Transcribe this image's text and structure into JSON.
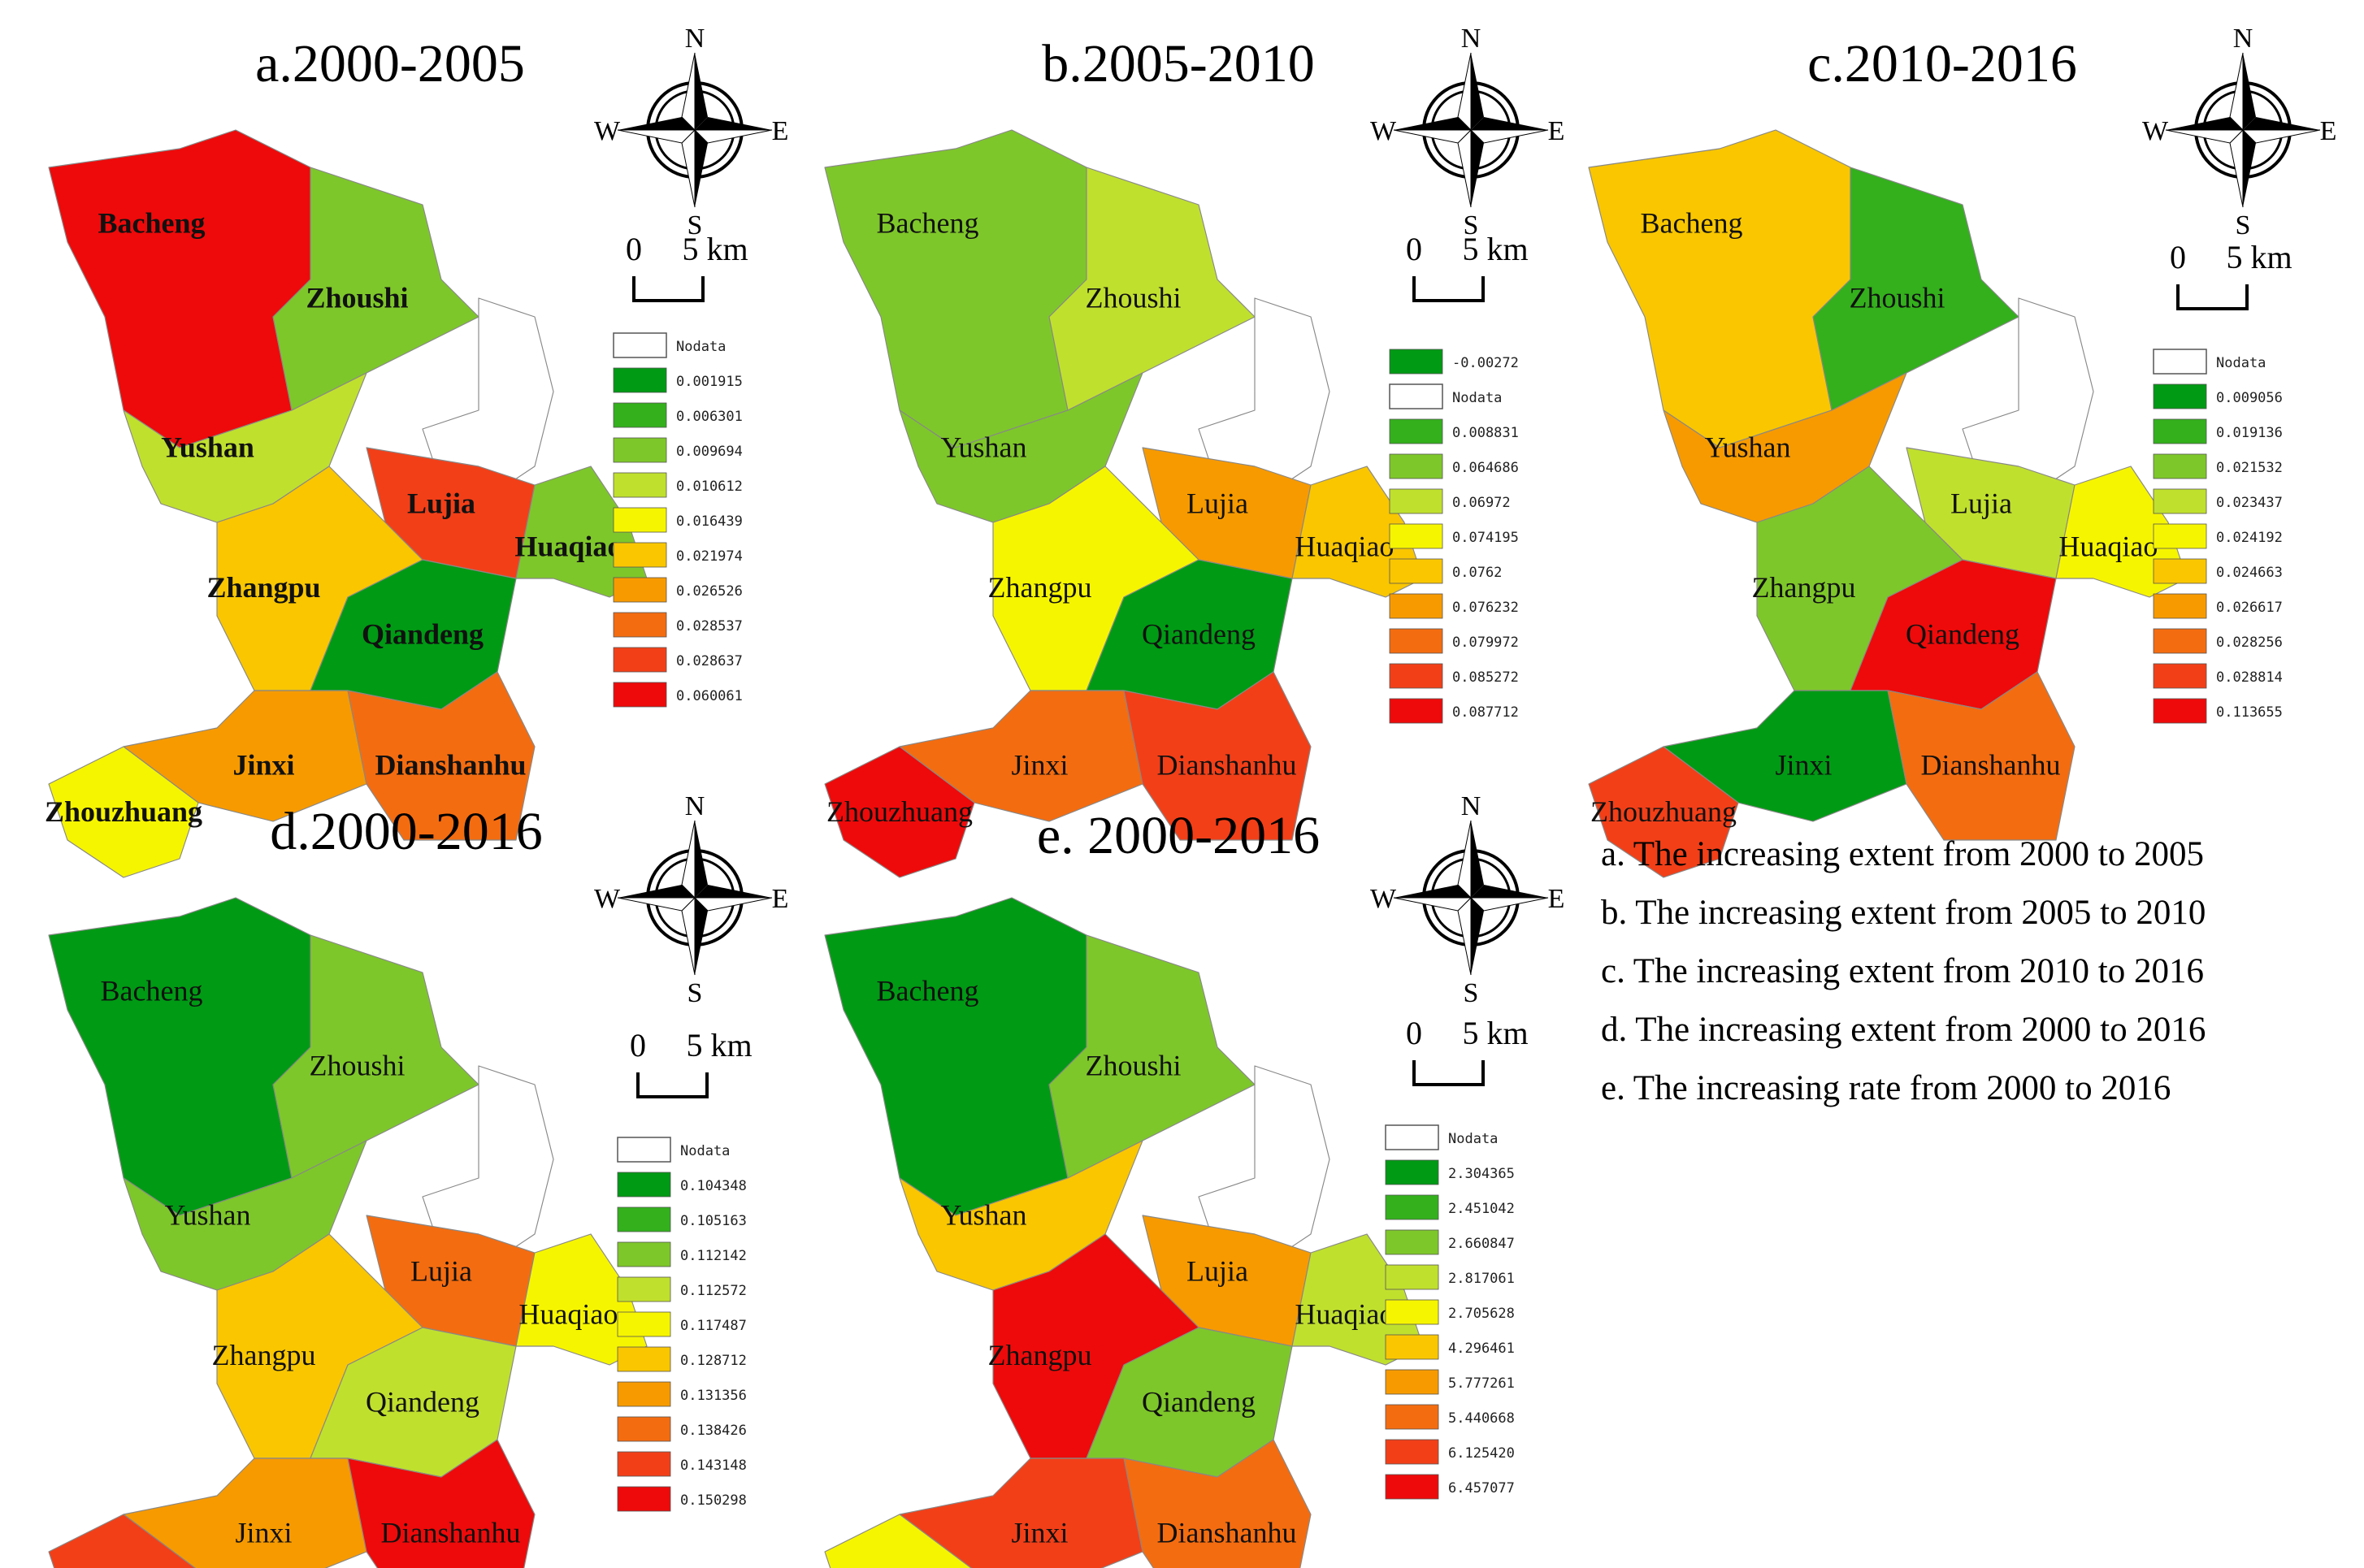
{
  "colors": {
    "c1": "#009a14",
    "c2": "#33b01c",
    "c3": "#7ec72a",
    "c4": "#c0e02e",
    "c5": "#f6f500",
    "c6": "#f9c600",
    "c7": "#f79a00",
    "c8": "#f46c10",
    "c9": "#f23f18",
    "c10": "#ee0a0a",
    "nodata": "#ffffff",
    "outline": "#888888"
  },
  "compass": {
    "n": "N",
    "s": "S",
    "w": "W",
    "e": "E"
  },
  "scale": {
    "zero": "0",
    "distance": "5 km"
  },
  "nodata_label": "Nodata",
  "region_names": {
    "bacheng": "Bacheng",
    "zhoushi": "Zhoushi",
    "yushan": "Yushan",
    "lujia": "Lujia",
    "huaqiao": "Huaqiao",
    "zhangpu": "Zhangpu",
    "qiandeng": "Qiandeng",
    "jinxi": "Jinxi",
    "dianshanhu": "Dianshanhu",
    "zhouzhuang": "Zhouzhuang"
  },
  "panels": [
    {
      "title": "a.2000-2005",
      "bold_labels": true,
      "legend": [
        "0.001915",
        "0.006301",
        "0.009694",
        "0.010612",
        "0.016439",
        "0.021974",
        "0.026526",
        "0.028537",
        "0.028637",
        "0.060061"
      ],
      "fills": {
        "bacheng": 10,
        "zhoushi": 3,
        "yushan": 4,
        "lujia": 9,
        "huaqiao": 3,
        "zhangpu": 6,
        "qiandeng": 1,
        "jinxi": 7,
        "dianshanhu": 8,
        "zhouzhuang": 5
      }
    },
    {
      "title": "b.2005-2010",
      "bold_labels": false,
      "legend_has_negative_class": true,
      "legend": [
        "-0.00272",
        "0.008831",
        "0.064686",
        "0.06972",
        "0.074195",
        "0.0762",
        "0.076232",
        "0.079972",
        "0.085272",
        "0.087712"
      ],
      "fills": {
        "bacheng": 3,
        "zhoushi": 4,
        "yushan": 3,
        "lujia": 7,
        "huaqiao": 6,
        "zhangpu": 5,
        "qiandeng": 1,
        "jinxi": 8,
        "dianshanhu": 9,
        "zhouzhuang": 10
      }
    },
    {
      "title": "c.2010-2016",
      "bold_labels": false,
      "legend": [
        "0.009056",
        "0.019136",
        "0.021532",
        "0.023437",
        "0.024192",
        "0.024663",
        "0.026617",
        "0.028256",
        "0.028814",
        "0.113655"
      ],
      "fills": {
        "bacheng": 6,
        "zhoushi": 2,
        "yushan": 7,
        "lujia": 4,
        "huaqiao": 5,
        "zhangpu": 3,
        "qiandeng": 10,
        "jinxi": 1,
        "dianshanhu": 8,
        "zhouzhuang": 9
      }
    },
    {
      "title": "d.2000-2016",
      "bold_labels": false,
      "legend": [
        "0.104348",
        "0.105163",
        "0.112142",
        "0.112572",
        "0.117487",
        "0.128712",
        "0.131356",
        "0.138426",
        "0.143148",
        "0.150298"
      ],
      "fills": {
        "bacheng": 1,
        "zhoushi": 3,
        "yushan": 3,
        "lujia": 8,
        "huaqiao": 5,
        "zhangpu": 6,
        "qiandeng": 4,
        "jinxi": 7,
        "dianshanhu": 10,
        "zhouzhuang": 9
      }
    },
    {
      "title": "e. 2000-2016",
      "bold_labels": false,
      "legend": [
        "2.304365",
        "2.451042",
        "2.660847",
        "2.817061",
        "2.705628",
        "4.296461",
        "5.777261",
        "5.440668",
        "6.125420",
        "6.457077"
      ],
      "fills": {
        "bacheng": 1,
        "zhoushi": 3,
        "yushan": 6,
        "lujia": 7,
        "huaqiao": 4,
        "zhangpu": 10,
        "qiandeng": 3,
        "jinxi": 9,
        "dianshanhu": 8,
        "zhouzhuang": 5
      }
    }
  ],
  "captions": [
    "a. The increasing extent from 2000 to 2005",
    "b. The  increasing extent from 2005 to 2010",
    "c. The  increasing extent from 2010 to 2016",
    "d. The  increasing extent from 2000 to 2016",
    "e. The  increasing rate from 2000 to 2016"
  ]
}
